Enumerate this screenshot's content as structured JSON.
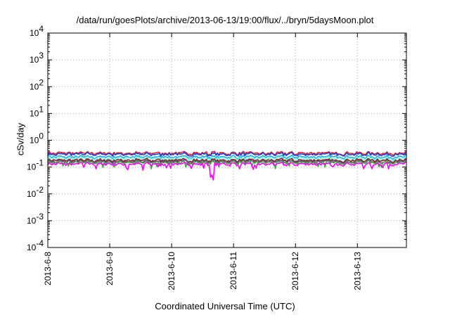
{
  "chart_data": {
    "type": "line",
    "title": "/data/run/goesPlots/archive/2013-06-13/19:00/flux/../bryn/5daysMoon.plot",
    "xlabel": "Coordinated Universal Time (UTC)",
    "ylabel": "cSv/day",
    "yscale": "log",
    "ylim": [
      0.0001,
      10000
    ],
    "y_ticks": [
      {
        "base": "10",
        "exp": "-4"
      },
      {
        "base": "10",
        "exp": "-3"
      },
      {
        "base": "10",
        "exp": "-2"
      },
      {
        "base": "10",
        "exp": "-1"
      },
      {
        "base": "10",
        "exp": "0"
      },
      {
        "base": "10",
        "exp": "1"
      },
      {
        "base": "10",
        "exp": "2"
      },
      {
        "base": "10",
        "exp": "3"
      },
      {
        "base": "10",
        "exp": "4"
      }
    ],
    "x_start": "2013-06-08",
    "x_end": "2013-06-13T19:00",
    "x_ticks": [
      "2013-6-8",
      "2013-6-9",
      "2013-6-10",
      "2013-6-11",
      "2013-6-12",
      "2013-6-13"
    ],
    "grid": true,
    "legend": "none",
    "series": [
      {
        "color": "#e8222a",
        "level": 0.33
      },
      {
        "color": "#1f3fd6",
        "level": 0.3
      },
      {
        "color": "#27a8e0",
        "level": 0.24
      },
      {
        "color": "#7fffe6",
        "level": 0.21
      },
      {
        "color": "#8b1a1a",
        "level": 0.18
      },
      {
        "color": "#6e3f97",
        "level": 0.16
      },
      {
        "color": "#3da83d",
        "level": 0.15
      },
      {
        "color": "#ff00ff",
        "level": 0.13
      }
    ]
  }
}
